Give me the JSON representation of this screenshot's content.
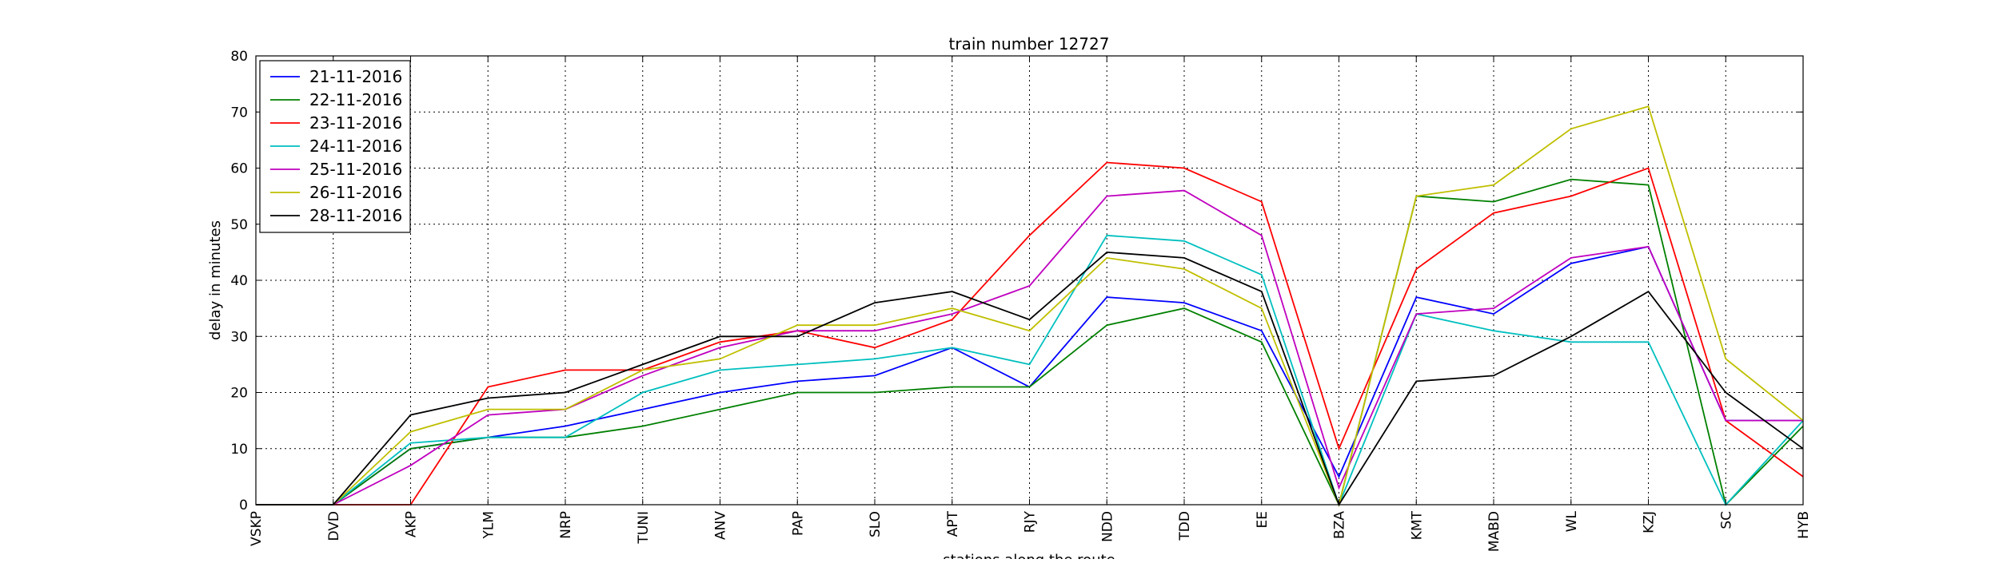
{
  "chart_data": {
    "type": "line",
    "title": "train number 12727",
    "xlabel": "stations along the route",
    "ylabel": "delay in minutes",
    "ylim": [
      0,
      80
    ],
    "yticks": [
      "0",
      "10",
      "20",
      "30",
      "40",
      "50",
      "60",
      "70",
      "80"
    ],
    "grid": true,
    "legend_position": "top-left",
    "categories": [
      "VSKP",
      "DVD",
      "AKP",
      "YLM",
      "NRP",
      "TUNI",
      "ANV",
      "PAP",
      "SLO",
      "APT",
      "RJY",
      "NDD",
      "TDD",
      "EE",
      "BZA",
      "KMT",
      "MABD",
      "WL",
      "KZJ",
      "SC",
      "HYB"
    ],
    "series": [
      {
        "name": "21-11-2016",
        "color": "#0000ff",
        "values": [
          0,
          0,
          10,
          12,
          14,
          17,
          20,
          22,
          23,
          28,
          21,
          37,
          36,
          31,
          5,
          37,
          34,
          43,
          46,
          15,
          15
        ]
      },
      {
        "name": "22-11-2016",
        "color": "#008000",
        "values": [
          0,
          0,
          10,
          12,
          12,
          14,
          17,
          20,
          20,
          21,
          21,
          32,
          35,
          29,
          0,
          55,
          54,
          58,
          57,
          0,
          14
        ]
      },
      {
        "name": "23-11-2016",
        "color": "#ff0000",
        "values": [
          0,
          0,
          0,
          21,
          24,
          24,
          29,
          31,
          28,
          33,
          48,
          61,
          60,
          54,
          10,
          42,
          52,
          55,
          60,
          15,
          5
        ]
      },
      {
        "name": "24-11-2016",
        "color": "#00bfbf",
        "values": [
          0,
          0,
          11,
          12,
          12,
          20,
          24,
          25,
          26,
          28,
          25,
          48,
          47,
          41,
          0,
          34,
          31,
          29,
          29,
          0,
          15
        ]
      },
      {
        "name": "25-11-2016",
        "color": "#bf00bf",
        "values": [
          0,
          0,
          7,
          16,
          17,
          23,
          28,
          31,
          31,
          34,
          39,
          55,
          56,
          48,
          3,
          34,
          35,
          44,
          46,
          15,
          15
        ]
      },
      {
        "name": "26-11-2016",
        "color": "#bfbf00",
        "values": [
          0,
          0,
          13,
          17,
          17,
          24,
          26,
          32,
          32,
          35,
          31,
          44,
          42,
          35,
          0,
          55,
          57,
          67,
          71,
          26,
          15
        ]
      },
      {
        "name": "28-11-2016",
        "color": "#000000",
        "values": [
          0,
          0,
          16,
          19,
          20,
          25,
          30,
          30,
          36,
          38,
          33,
          45,
          44,
          38,
          0,
          22,
          23,
          30,
          38,
          20,
          10
        ]
      }
    ]
  }
}
